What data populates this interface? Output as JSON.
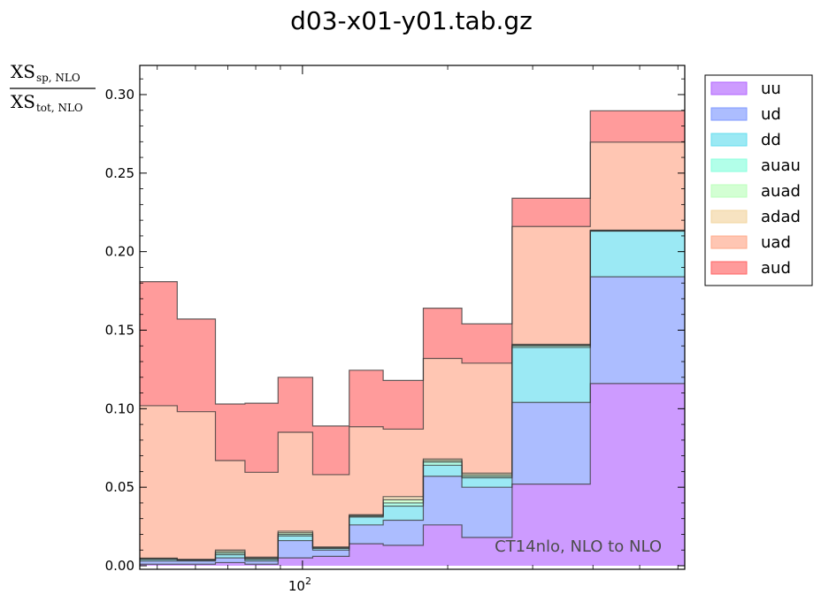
{
  "chart_data": {
    "type": "area",
    "title": "d03-x01-y01.tab.gz",
    "ylabel": {
      "numerator": "XS",
      "numerator_sub": "sp, NLO",
      "denominator": "XS",
      "denominator_sub": "tot, NLO"
    },
    "xscale": "log",
    "x_tick_label": "10",
    "x_tick_exp": "2",
    "x_tick_value": 100,
    "ylim": [
      0,
      0.318
    ],
    "yticks": [
      "0.00",
      "0.05",
      "0.10",
      "0.15",
      "0.20",
      "0.25",
      "0.30"
    ],
    "ytick_values": [
      0,
      0.05,
      0.1,
      0.15,
      0.2,
      0.25,
      0.3
    ],
    "annotation": "CT14nlo, NLO to NLO",
    "legend_position": "upper-right-outside",
    "bin_edges": [
      46,
      55,
      66,
      76,
      89,
      105,
      125,
      147,
      178,
      214,
      272,
      395,
      620
    ],
    "series": [
      {
        "name": "uu",
        "color": "#b266ff",
        "values": [
          0.001,
          0.001,
          0.002,
          0.001,
          0.005,
          0.006,
          0.014,
          0.013,
          0.026,
          0.018,
          0.052,
          0.116
        ]
      },
      {
        "name": "ud",
        "color": "#7f99ff",
        "values": [
          0.002,
          0.002,
          0.003,
          0.002,
          0.011,
          0.004,
          0.012,
          0.016,
          0.031,
          0.032,
          0.052,
          0.068
        ]
      },
      {
        "name": "dd",
        "color": "#66ddee",
        "values": [
          0.001,
          0.0005,
          0.002,
          0.001,
          0.003,
          0.001,
          0.005,
          0.009,
          0.007,
          0.006,
          0.035,
          0.029
        ]
      },
      {
        "name": "auau",
        "color": "#88ffdd",
        "values": [
          0.0003,
          0.0002,
          0.001,
          0.0005,
          0.001,
          0.0003,
          0.0005,
          0.002,
          0.002,
          0.001,
          0.001,
          0.0003
        ]
      },
      {
        "name": "auad",
        "color": "#bbffbb",
        "values": [
          0.0003,
          0.0002,
          0.001,
          0.0005,
          0.001,
          0.0003,
          0.0005,
          0.002,
          0.001,
          0.001,
          0.0005,
          0.0002
        ]
      },
      {
        "name": "adad",
        "color": "#f2d4a0",
        "values": [
          0.0003,
          0.0002,
          0.001,
          0.0005,
          0.001,
          0.0004,
          0.0005,
          0.002,
          0.001,
          0.001,
          0.0005,
          0.0002
        ]
      },
      {
        "name": "uad",
        "color": "#ffa88a",
        "values": [
          0.097,
          0.094,
          0.057,
          0.054,
          0.063,
          0.046,
          0.056,
          0.043,
          0.064,
          0.07,
          0.075,
          0.056
        ]
      },
      {
        "name": "aud",
        "color": "#ff6666",
        "values": [
          0.079,
          0.059,
          0.036,
          0.044,
          0.035,
          0.031,
          0.036,
          0.031,
          0.032,
          0.025,
          0.018,
          0.02
        ]
      }
    ]
  }
}
